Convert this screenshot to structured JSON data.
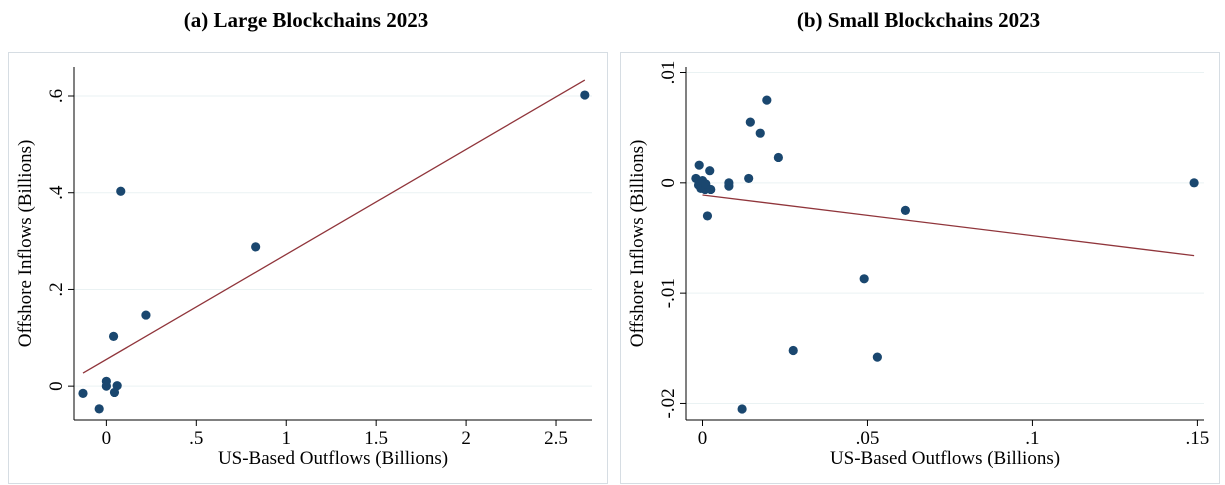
{
  "chart_data": [
    {
      "type": "scatter",
      "title": "(a) Large Blockchains 2023",
      "xlabel": "US-Based Outflows (Billions)",
      "ylabel": "Offshore Inflows (Billions)",
      "xlim": [
        -0.18,
        2.7
      ],
      "ylim": [
        -0.07,
        0.66
      ],
      "xticks": [
        {
          "v": 0.5,
          "label": ".5"
        },
        {
          "v": 1,
          "label": "1"
        },
        {
          "v": 1.5,
          "label": "1.5"
        },
        {
          "v": 2,
          "label": "2"
        },
        {
          "v": 2.5,
          "label": "2.5"
        },
        {
          "v": 0,
          "label": "0"
        }
      ],
      "yticks": [
        {
          "v": 0,
          "label": "0"
        },
        {
          "v": 0.2,
          "label": ".2"
        },
        {
          "v": 0.4,
          "label": ".4"
        },
        {
          "v": 0.6,
          "label": ".6"
        }
      ],
      "grid": true,
      "marker_color": "#1a476f",
      "fit_color": "#90353b",
      "points": [
        [
          -0.13,
          -0.015
        ],
        [
          -0.04,
          -0.047
        ],
        [
          0.0,
          0.0
        ],
        [
          0.0,
          0.01
        ],
        [
          0.04,
          0.103
        ],
        [
          0.045,
          -0.013
        ],
        [
          0.06,
          0.001
        ],
        [
          0.08,
          0.403
        ],
        [
          0.22,
          0.147
        ],
        [
          0.83,
          0.288
        ],
        [
          2.66,
          0.602
        ]
      ],
      "fit_line": [
        [
          -0.13,
          0.027
        ],
        [
          2.66,
          0.633
        ]
      ]
    },
    {
      "type": "scatter",
      "title": "(b) Small Blockchains 2023",
      "xlabel": "US-Based Outflows (Billions)",
      "ylabel": "Offshore Inflows (Billions)",
      "xlim": [
        -0.005,
        0.152
      ],
      "ylim": [
        -0.0215,
        0.0105
      ],
      "xticks": [
        {
          "v": 0,
          "label": "0"
        },
        {
          "v": 0.05,
          "label": ".05"
        },
        {
          "v": 0.1,
          "label": ".1"
        },
        {
          "v": 0.15,
          "label": ".15"
        }
      ],
      "yticks": [
        {
          "v": -0.02,
          "label": "-.02"
        },
        {
          "v": -0.01,
          "label": "-.01"
        },
        {
          "v": 0,
          "label": "0"
        },
        {
          "v": 0.01,
          "label": ".01"
        }
      ],
      "grid": true,
      "marker_color": "#1a476f",
      "fit_color": "#90353b",
      "points": [
        [
          -0.002,
          0.0004
        ],
        [
          -0.001,
          0.0016
        ],
        [
          -0.0012,
          -0.0002
        ],
        [
          -0.0005,
          -0.0005
        ],
        [
          0.0,
          0.0002
        ],
        [
          0.0008,
          -0.0006
        ],
        [
          0.001,
          -0.0001
        ],
        [
          0.0015,
          -0.003
        ],
        [
          0.0022,
          0.0011
        ],
        [
          0.0025,
          -0.0006
        ],
        [
          0.008,
          -0.0003
        ],
        [
          0.008,
          0.0
        ],
        [
          0.012,
          -0.0205
        ],
        [
          0.014,
          0.0004
        ],
        [
          0.0145,
          0.0055
        ],
        [
          0.0175,
          0.0045
        ],
        [
          0.0195,
          0.0075
        ],
        [
          0.023,
          0.0023
        ],
        [
          0.0275,
          -0.0152
        ],
        [
          0.049,
          -0.0087
        ],
        [
          0.053,
          -0.0158
        ],
        [
          0.0615,
          -0.0025
        ],
        [
          0.149,
          0.0
        ]
      ],
      "fit_line": [
        [
          0.0,
          -0.0011
        ],
        [
          0.149,
          -0.0066
        ]
      ]
    }
  ]
}
